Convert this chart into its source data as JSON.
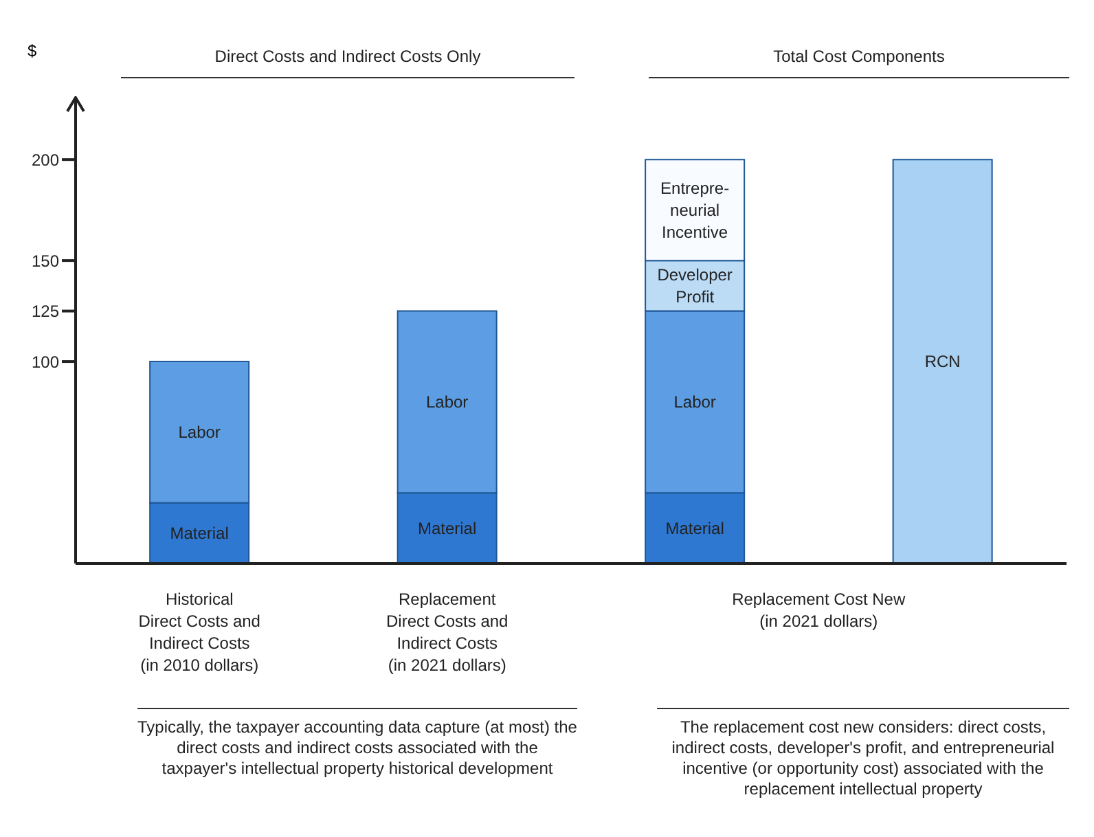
{
  "chart_data": {
    "type": "bar",
    "stacked": true,
    "ylabel": "$",
    "categories": [
      "Historical\nDirect Costs and\nIndirect Costs\n(in 2010 dollars)",
      "Replacement\nDirect Costs and\nIndirect Costs\n(in 2021 dollars)",
      "Replacement Cost New\n(in 2021 dollars)",
      null
    ],
    "series": [
      {
        "name": "Material",
        "color": "#2f78d2",
        "values": [
          30,
          35,
          35,
          null
        ]
      },
      {
        "name": "Labor",
        "color": "#5c9de3",
        "values": [
          70,
          90,
          90,
          null
        ]
      },
      {
        "name": "Developer Profit",
        "color": "#bcdcf6",
        "values": [
          null,
          null,
          25,
          null
        ]
      },
      {
        "name": "Entrepre-neurial Incentive",
        "color": "#f8fbff",
        "values": [
          null,
          null,
          50,
          null
        ]
      },
      {
        "name": "RCN",
        "color": "#a9d1f3",
        "values": [
          null,
          null,
          null,
          200
        ]
      }
    ],
    "ylim": [
      0,
      230
    ],
    "yticks": [
      100,
      125,
      150,
      200
    ],
    "annotations": [
      "Direct Costs and Indirect Costs Only",
      "Total Cost Components",
      "Typically, the taxpayer accounting data capture (at most) the direct costs and indirect costs associated with the taxpayer's intellectual property historical development",
      "The replacement cost new considers: direct costs, indirect costs, developer's profit, and entrepreneurial incentive (or opportunity cost) associated with the replacement intellectual property"
    ]
  }
}
